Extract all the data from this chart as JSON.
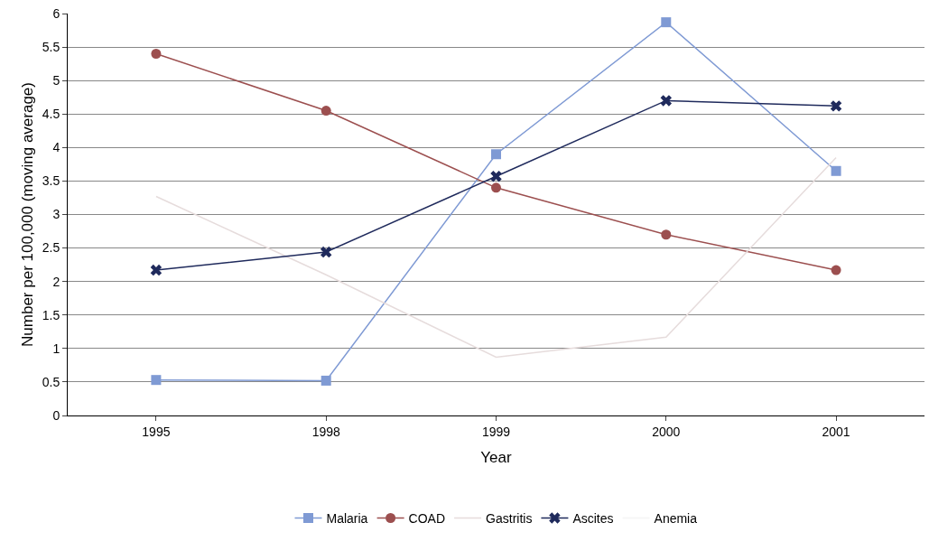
{
  "chart_data": {
    "type": "line",
    "xlabel": "Year",
    "ylabel": "Number per 100,000 (moving average)",
    "categories": [
      "1995",
      "1998",
      "1999",
      "2000",
      "2001"
    ],
    "series": [
      {
        "name": "Malaria",
        "color": "#7f9ad4",
        "marker": "square",
        "values": [
          0.53,
          0.52,
          3.9,
          5.87,
          3.65
        ]
      },
      {
        "name": "COAD",
        "color": "#9c4f4f",
        "marker": "circle",
        "values": [
          5.4,
          4.55,
          3.4,
          2.7,
          2.17
        ]
      },
      {
        "name": "Gastritis",
        "color": "#e6dcdc",
        "marker": "none",
        "values": [
          3.27,
          2.1,
          0.87,
          1.17,
          3.85
        ]
      },
      {
        "name": "Ascites",
        "color": "#1f2a5c",
        "marker": "cross",
        "values": [
          2.17,
          2.44,
          3.57,
          4.7,
          4.62
        ]
      },
      {
        "name": "Anemia",
        "color": "#f4f4f4",
        "marker": "none",
        "values": [
          null,
          null,
          null,
          null,
          null
        ]
      }
    ],
    "ylim": [
      0,
      6
    ],
    "yticks": [
      0,
      0.5,
      1,
      1.5,
      2,
      2.5,
      3,
      3.5,
      4,
      4.5,
      5,
      5.5,
      6
    ],
    "grid": "y",
    "legend": "bottom",
    "line_style": "solid"
  }
}
